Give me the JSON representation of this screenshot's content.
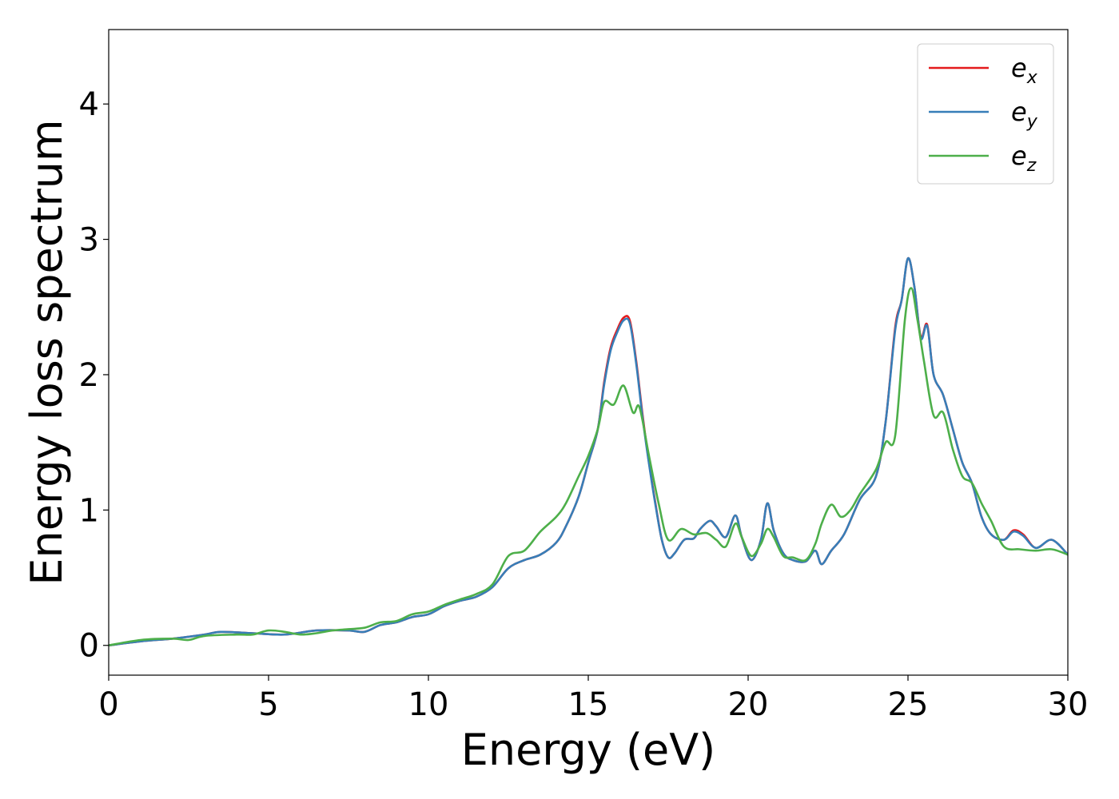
{
  "chart_data": {
    "type": "line",
    "xlabel": "Energy (eV)",
    "ylabel": "Energy loss spectrum",
    "xlim": [
      0,
      30
    ],
    "ylim": [
      -0.22,
      4.55
    ],
    "xticks": [
      0,
      5,
      10,
      15,
      20,
      25,
      30
    ],
    "yticks": [
      0,
      1,
      2,
      3,
      4
    ],
    "grid": false,
    "legend_position": "top-right",
    "series": [
      {
        "name": "e_x",
        "label_base": "e",
        "label_sub": "x",
        "color": "#e41a1c",
        "points": [
          [
            0,
            0
          ],
          [
            1,
            0.03
          ],
          [
            2,
            0.05
          ],
          [
            3,
            0.08
          ],
          [
            3.5,
            0.1
          ],
          [
            4.5,
            0.09
          ],
          [
            5.5,
            0.08
          ],
          [
            6.5,
            0.11
          ],
          [
            7.5,
            0.11
          ],
          [
            8,
            0.1
          ],
          [
            8.5,
            0.15
          ],
          [
            9,
            0.17
          ],
          [
            9.5,
            0.21
          ],
          [
            10,
            0.23
          ],
          [
            10.5,
            0.29
          ],
          [
            11,
            0.33
          ],
          [
            11.5,
            0.36
          ],
          [
            12,
            0.43
          ],
          [
            12.5,
            0.57
          ],
          [
            13,
            0.63
          ],
          [
            13.5,
            0.67
          ],
          [
            14,
            0.76
          ],
          [
            14.3,
            0.88
          ],
          [
            14.7,
            1.1
          ],
          [
            15,
            1.35
          ],
          [
            15.3,
            1.6
          ],
          [
            15.5,
            1.95
          ],
          [
            15.7,
            2.2
          ],
          [
            15.9,
            2.33
          ],
          [
            16.1,
            2.42
          ],
          [
            16.3,
            2.4
          ],
          [
            16.5,
            2.1
          ],
          [
            16.7,
            1.7
          ],
          [
            16.9,
            1.35
          ],
          [
            17.1,
            1.05
          ],
          [
            17.3,
            0.78
          ],
          [
            17.5,
            0.65
          ],
          [
            17.7,
            0.68
          ],
          [
            18,
            0.78
          ],
          [
            18.3,
            0.79
          ],
          [
            18.5,
            0.86
          ],
          [
            18.8,
            0.92
          ],
          [
            19,
            0.88
          ],
          [
            19.3,
            0.8
          ],
          [
            19.6,
            0.96
          ],
          [
            19.8,
            0.8
          ],
          [
            20.1,
            0.63
          ],
          [
            20.4,
            0.78
          ],
          [
            20.6,
            1.05
          ],
          [
            20.8,
            0.85
          ],
          [
            21.1,
            0.68
          ],
          [
            21.4,
            0.63
          ],
          [
            21.8,
            0.62
          ],
          [
            22.1,
            0.7
          ],
          [
            22.3,
            0.6
          ],
          [
            22.6,
            0.7
          ],
          [
            23,
            0.82
          ],
          [
            23.5,
            1.08
          ],
          [
            24,
            1.25
          ],
          [
            24.3,
            1.65
          ],
          [
            24.6,
            2.35
          ],
          [
            24.8,
            2.55
          ],
          [
            25,
            2.86
          ],
          [
            25.2,
            2.65
          ],
          [
            25.4,
            2.28
          ],
          [
            25.6,
            2.37
          ],
          [
            25.8,
            2.0
          ],
          [
            26.1,
            1.85
          ],
          [
            26.4,
            1.6
          ],
          [
            26.7,
            1.35
          ],
          [
            27,
            1.2
          ],
          [
            27.3,
            0.95
          ],
          [
            27.6,
            0.82
          ],
          [
            28,
            0.78
          ],
          [
            28.3,
            0.85
          ],
          [
            28.6,
            0.82
          ],
          [
            29,
            0.72
          ],
          [
            29.5,
            0.78
          ],
          [
            30,
            0.67
          ]
        ]
      },
      {
        "name": "e_y",
        "label_base": "e",
        "label_sub": "y",
        "color": "#377eb8",
        "points": [
          [
            0,
            0
          ],
          [
            1,
            0.03
          ],
          [
            2,
            0.05
          ],
          [
            3,
            0.08
          ],
          [
            3.5,
            0.1
          ],
          [
            4.5,
            0.09
          ],
          [
            5.5,
            0.08
          ],
          [
            6.5,
            0.11
          ],
          [
            7.5,
            0.11
          ],
          [
            8,
            0.1
          ],
          [
            8.5,
            0.15
          ],
          [
            9,
            0.17
          ],
          [
            9.5,
            0.21
          ],
          [
            10,
            0.23
          ],
          [
            10.5,
            0.29
          ],
          [
            11,
            0.33
          ],
          [
            11.5,
            0.36
          ],
          [
            12,
            0.43
          ],
          [
            12.5,
            0.57
          ],
          [
            13,
            0.63
          ],
          [
            13.5,
            0.67
          ],
          [
            14,
            0.76
          ],
          [
            14.3,
            0.88
          ],
          [
            14.7,
            1.1
          ],
          [
            15,
            1.35
          ],
          [
            15.3,
            1.6
          ],
          [
            15.5,
            1.93
          ],
          [
            15.7,
            2.18
          ],
          [
            15.9,
            2.31
          ],
          [
            16.1,
            2.4
          ],
          [
            16.3,
            2.38
          ],
          [
            16.5,
            2.08
          ],
          [
            16.7,
            1.68
          ],
          [
            16.9,
            1.34
          ],
          [
            17.1,
            1.04
          ],
          [
            17.3,
            0.78
          ],
          [
            17.5,
            0.65
          ],
          [
            17.7,
            0.68
          ],
          [
            18,
            0.78
          ],
          [
            18.3,
            0.79
          ],
          [
            18.5,
            0.86
          ],
          [
            18.8,
            0.92
          ],
          [
            19,
            0.88
          ],
          [
            19.3,
            0.8
          ],
          [
            19.6,
            0.96
          ],
          [
            19.8,
            0.8
          ],
          [
            20.1,
            0.63
          ],
          [
            20.4,
            0.78
          ],
          [
            20.6,
            1.05
          ],
          [
            20.8,
            0.85
          ],
          [
            21.1,
            0.68
          ],
          [
            21.4,
            0.63
          ],
          [
            21.8,
            0.62
          ],
          [
            22.1,
            0.7
          ],
          [
            22.3,
            0.6
          ],
          [
            22.6,
            0.7
          ],
          [
            23,
            0.82
          ],
          [
            23.5,
            1.08
          ],
          [
            24,
            1.25
          ],
          [
            24.3,
            1.65
          ],
          [
            24.6,
            2.33
          ],
          [
            24.8,
            2.55
          ],
          [
            25,
            2.86
          ],
          [
            25.2,
            2.65
          ],
          [
            25.4,
            2.27
          ],
          [
            25.6,
            2.36
          ],
          [
            25.8,
            2.0
          ],
          [
            26.1,
            1.85
          ],
          [
            26.4,
            1.6
          ],
          [
            26.7,
            1.35
          ],
          [
            27,
            1.2
          ],
          [
            27.3,
            0.95
          ],
          [
            27.6,
            0.82
          ],
          [
            28,
            0.78
          ],
          [
            28.3,
            0.84
          ],
          [
            28.6,
            0.81
          ],
          [
            29,
            0.72
          ],
          [
            29.5,
            0.78
          ],
          [
            30,
            0.67
          ]
        ]
      },
      {
        "name": "e_z",
        "label_base": "e",
        "label_sub": "z",
        "color": "#4daf4a",
        "points": [
          [
            0,
            0
          ],
          [
            1,
            0.04
          ],
          [
            2,
            0.05
          ],
          [
            2.5,
            0.04
          ],
          [
            3,
            0.07
          ],
          [
            4,
            0.08
          ],
          [
            4.5,
            0.08
          ],
          [
            5,
            0.11
          ],
          [
            5.5,
            0.1
          ],
          [
            6,
            0.08
          ],
          [
            6.5,
            0.09
          ],
          [
            7,
            0.11
          ],
          [
            7.5,
            0.12
          ],
          [
            8,
            0.13
          ],
          [
            8.5,
            0.17
          ],
          [
            9,
            0.18
          ],
          [
            9.5,
            0.23
          ],
          [
            10,
            0.25
          ],
          [
            10.5,
            0.3
          ],
          [
            11,
            0.34
          ],
          [
            11.5,
            0.38
          ],
          [
            12,
            0.45
          ],
          [
            12.5,
            0.66
          ],
          [
            13,
            0.7
          ],
          [
            13.5,
            0.84
          ],
          [
            14,
            0.95
          ],
          [
            14.3,
            1.05
          ],
          [
            14.7,
            1.25
          ],
          [
            15,
            1.4
          ],
          [
            15.3,
            1.6
          ],
          [
            15.5,
            1.8
          ],
          [
            15.8,
            1.78
          ],
          [
            16.1,
            1.92
          ],
          [
            16.4,
            1.72
          ],
          [
            16.6,
            1.76
          ],
          [
            16.9,
            1.4
          ],
          [
            17.2,
            1.05
          ],
          [
            17.5,
            0.78
          ],
          [
            17.9,
            0.86
          ],
          [
            18.3,
            0.82
          ],
          [
            18.7,
            0.83
          ],
          [
            19,
            0.78
          ],
          [
            19.3,
            0.73
          ],
          [
            19.6,
            0.9
          ],
          [
            19.8,
            0.8
          ],
          [
            20.1,
            0.66
          ],
          [
            20.4,
            0.75
          ],
          [
            20.6,
            0.86
          ],
          [
            20.8,
            0.8
          ],
          [
            21.1,
            0.66
          ],
          [
            21.4,
            0.65
          ],
          [
            21.8,
            0.63
          ],
          [
            22.1,
            0.75
          ],
          [
            22.3,
            0.9
          ],
          [
            22.6,
            1.04
          ],
          [
            22.9,
            0.95
          ],
          [
            23.2,
            1.0
          ],
          [
            23.5,
            1.12
          ],
          [
            24,
            1.3
          ],
          [
            24.3,
            1.5
          ],
          [
            24.6,
            1.55
          ],
          [
            24.9,
            2.4
          ],
          [
            25.1,
            2.64
          ],
          [
            25.3,
            2.4
          ],
          [
            25.5,
            2.1
          ],
          [
            25.8,
            1.7
          ],
          [
            26.1,
            1.72
          ],
          [
            26.4,
            1.45
          ],
          [
            26.7,
            1.25
          ],
          [
            27,
            1.2
          ],
          [
            27.3,
            1.05
          ],
          [
            27.6,
            0.92
          ],
          [
            28,
            0.73
          ],
          [
            28.5,
            0.71
          ],
          [
            29,
            0.7
          ],
          [
            29.5,
            0.71
          ],
          [
            30,
            0.67
          ]
        ]
      }
    ]
  }
}
